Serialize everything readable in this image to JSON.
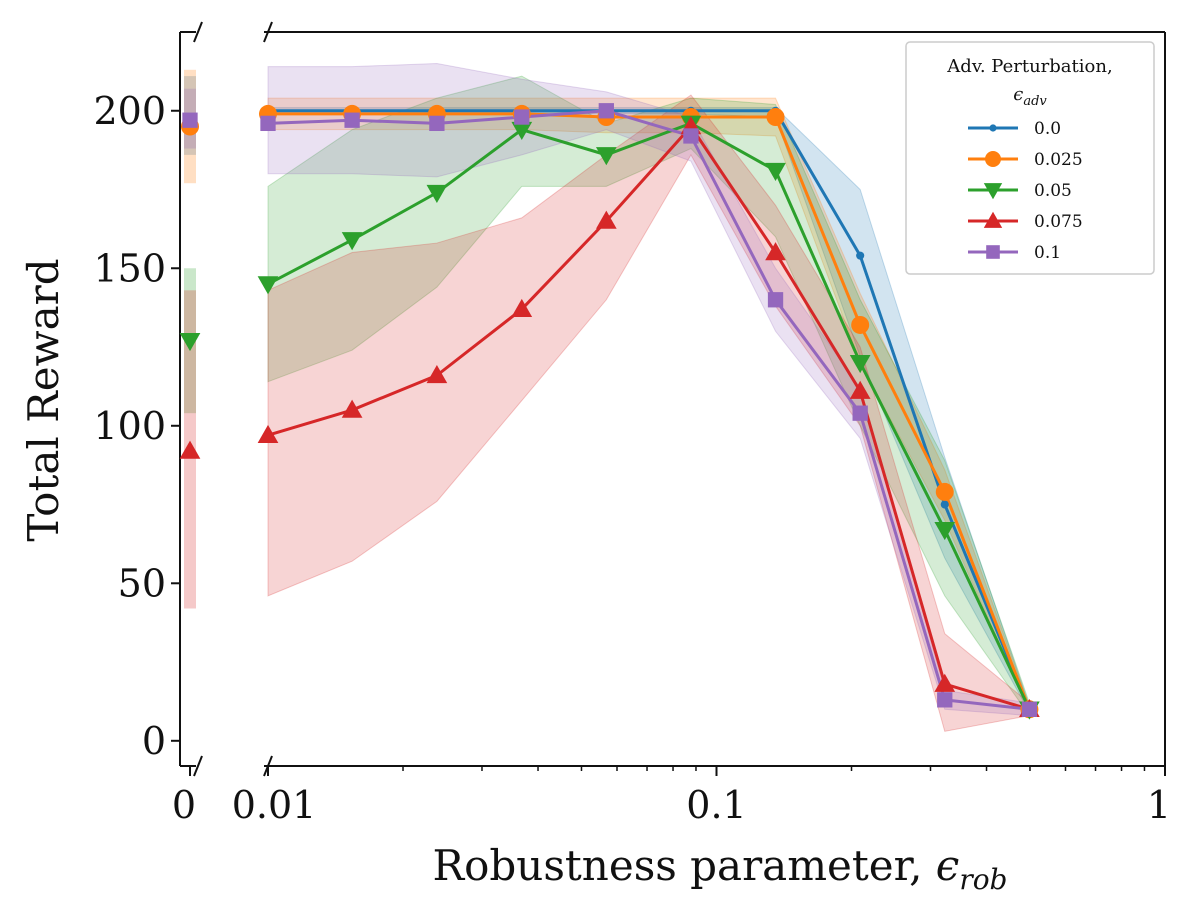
{
  "chart_data": {
    "type": "line",
    "title": "",
    "xlabel": "Robustness parameter, ",
    "xlabel_symbol": "ϵ",
    "xlabel_sub": "rob",
    "ylabel": "Total Reward",
    "xscale": "log",
    "xlim": [
      0.0085,
      1.0
    ],
    "ylim": [
      -8,
      225
    ],
    "x_break_value": 0,
    "yticks": [
      0,
      50,
      100,
      150,
      200
    ],
    "ytick_labels": [
      "0",
      "50",
      "100",
      "150",
      "200"
    ],
    "xticks": [
      0.01,
      0.1,
      1
    ],
    "xtick_labels": [
      "0.01",
      "0.1",
      "1"
    ],
    "x_break_label": "0",
    "x": [
      0.01,
      0.0154,
      0.0238,
      0.0368,
      0.0568,
      0.0877,
      0.1354,
      0.2091,
      0.3228,
      0.4985
    ],
    "legend": {
      "title": "Adv. Perturbation,",
      "title_symbol": "ϵ",
      "title_sub": "adv",
      "position": "top-right"
    },
    "series": [
      {
        "name": "0.0",
        "color": "#1f77b4",
        "marker": "dot",
        "at_zero": {
          "value": 198,
          "low": 186,
          "high": 211
        },
        "values": [
          200,
          200,
          200,
          200,
          200,
          200,
          200,
          154,
          75,
          10
        ],
        "low": [
          199,
          199,
          199,
          199,
          199,
          199,
          198,
          122,
          58,
          9
        ],
        "high": [
          201,
          201,
          201,
          201,
          201,
          201,
          201,
          175,
          90,
          11
        ]
      },
      {
        "name": "0.025",
        "color": "#ff7f0e",
        "marker": "circle",
        "at_zero": {
          "value": 195,
          "low": 177,
          "high": 213
        },
        "values": [
          199,
          199,
          199,
          199,
          198,
          198,
          198,
          132,
          79,
          10
        ],
        "low": [
          194,
          194,
          194,
          194,
          193,
          193,
          192,
          120,
          70,
          9
        ],
        "high": [
          204,
          204,
          204,
          204,
          204,
          204,
          204,
          142,
          86,
          11
        ]
      },
      {
        "name": "0.05",
        "color": "#2ca02c",
        "marker": "triangle-down",
        "at_zero": {
          "value": 127,
          "low": 104,
          "high": 150
        },
        "values": [
          145,
          159,
          174,
          194,
          186,
          196,
          181,
          120,
          67,
          10
        ],
        "low": [
          114,
          124,
          144,
          176,
          176,
          188,
          160,
          100,
          46,
          8
        ],
        "high": [
          176,
          194,
          204,
          211,
          196,
          204,
          202,
          140,
          89,
          12
        ]
      },
      {
        "name": "0.075",
        "color": "#d62728",
        "marker": "triangle-up",
        "at_zero": {
          "value": 92,
          "low": 42,
          "high": 143
        },
        "values": [
          97,
          105,
          116,
          137,
          165,
          195,
          155,
          111,
          18,
          10
        ],
        "low": [
          46,
          57,
          76,
          108,
          140,
          186,
          138,
          100,
          3,
          8
        ],
        "high": [
          143,
          155,
          158,
          166,
          186,
          205,
          170,
          125,
          34,
          12
        ]
      },
      {
        "name": "0.1",
        "color": "#9467bd",
        "marker": "square",
        "at_zero": {
          "value": 197,
          "low": 188,
          "high": 207
        },
        "values": [
          196,
          197,
          196,
          198,
          200,
          192,
          140,
          104,
          13,
          10
        ],
        "low": [
          180,
          180,
          179,
          186,
          194,
          184,
          130,
          96,
          10,
          8
        ],
        "high": [
          214,
          214,
          215,
          210,
          206,
          198,
          150,
          112,
          16,
          12
        ]
      }
    ]
  }
}
